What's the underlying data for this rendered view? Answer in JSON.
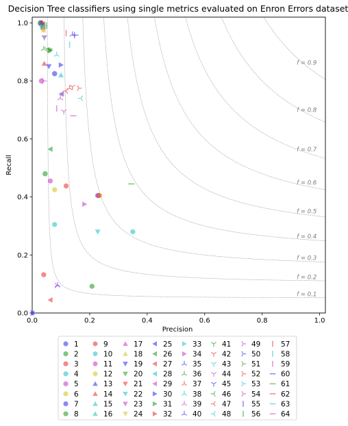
{
  "chart_data": {
    "type": "scatter",
    "title": "Decision Tree classifiers using single metrics evaluated on Enron Errors dataset",
    "xlabel": "Precision",
    "ylabel": "Recall",
    "xlim": [
      0,
      1.02
    ],
    "ylim": [
      0,
      1.02
    ],
    "xticks": [
      "0.0",
      "0.2",
      "0.4",
      "0.6",
      "0.8",
      "1.0"
    ],
    "yticks": [
      "0.0",
      "0.2",
      "0.4",
      "0.6",
      "0.8",
      "1.0"
    ],
    "grid": false,
    "legend_position": "bottom-center",
    "f_isolines": [
      {
        "f": 0.1,
        "label": "f = 0.1"
      },
      {
        "f": 0.2,
        "label": "f = 0.2"
      },
      {
        "f": 0.3,
        "label": "f = 0.3"
      },
      {
        "f": 0.4,
        "label": "f = 0.4"
      },
      {
        "f": 0.5,
        "label": "f = 0.5"
      },
      {
        "f": 0.6,
        "label": "f = 0.6"
      },
      {
        "f": 0.7,
        "label": "f = 0.7"
      },
      {
        "f": 0.8,
        "label": "f = 0.8"
      },
      {
        "f": 0.9,
        "label": "f = 0.9"
      }
    ],
    "colors": [
      "#3b3bf0",
      "#2e9c2e",
      "#ee3b3b",
      "#2ec4c4",
      "#cc44cc",
      "#d4c62e"
    ],
    "series": [
      {
        "name": "1",
        "marker": "o",
        "color": "#3b3bf0",
        "points": [
          [
            0.03,
            1.0
          ]
        ]
      },
      {
        "name": "2",
        "marker": "o",
        "color": "#2e9c2e",
        "points": [
          [
            0.028,
            1.0
          ]
        ]
      },
      {
        "name": "3",
        "marker": "o",
        "color": "#ee3b3b",
        "points": [
          [
            0.032,
            1.0
          ]
        ]
      },
      {
        "name": "4",
        "marker": "o",
        "color": "#2ec4c4",
        "points": [
          [
            0.029,
            0.997
          ]
        ]
      },
      {
        "name": "5",
        "marker": "o",
        "color": "#cc44cc",
        "points": [
          [
            0.032,
            0.8
          ]
        ]
      },
      {
        "name": "6",
        "marker": "o",
        "color": "#d4c62e",
        "points": [
          [
            0.038,
            0.98
          ]
        ]
      },
      {
        "name": "7",
        "marker": "o",
        "color": "#3b3bf0",
        "points": [
          [
            0.078,
            0.825
          ]
        ]
      },
      {
        "name": "8",
        "marker": "o",
        "color": "#2e9c2e",
        "points": [
          [
            0.045,
            0.48
          ]
        ]
      },
      {
        "name": "9",
        "marker": "h",
        "color": "#ee3b3b",
        "points": [
          [
            0.118,
            0.438
          ]
        ]
      },
      {
        "name": "10",
        "marker": "h",
        "color": "#2ec4c4",
        "points": [
          [
            0.078,
            0.305
          ]
        ]
      },
      {
        "name": "11",
        "marker": "h",
        "color": "#cc44cc",
        "points": [
          [
            0.063,
            0.455
          ]
        ]
      },
      {
        "name": "12",
        "marker": "h",
        "color": "#d4c62e",
        "points": [
          [
            0.078,
            0.425
          ]
        ]
      },
      {
        "name": "13",
        "marker": "^",
        "color": "#3b3bf0",
        "points": [
          [
            0.032,
            1.0
          ]
        ]
      },
      {
        "name": "14",
        "marker": "^",
        "color": "#ee3b3b",
        "points": [
          [
            0.042,
            0.86
          ]
        ]
      },
      {
        "name": "15",
        "marker": "^",
        "color": "#2ec4c4",
        "points": [
          [
            0.1,
            0.82
          ]
        ]
      },
      {
        "name": "16",
        "marker": "^",
        "color": "#2ec4c4",
        "points": [
          [
            0.035,
            0.99
          ]
        ]
      },
      {
        "name": "17",
        "marker": "^",
        "color": "#cc44cc",
        "points": [
          [
            0.038,
            0.985
          ]
        ]
      },
      {
        "name": "18",
        "marker": "^",
        "color": "#d4c62e",
        "points": [
          [
            0.04,
            0.975
          ]
        ]
      },
      {
        "name": "19",
        "marker": "v",
        "color": "#3b3bf0",
        "points": [
          [
            0.058,
            0.85
          ]
        ]
      },
      {
        "name": "20",
        "marker": "v",
        "color": "#2e9c2e",
        "points": [
          [
            0.062,
            0.905
          ]
        ]
      },
      {
        "name": "21",
        "marker": "v",
        "color": "#ee3b3b",
        "points": [
          [
            0.035,
            0.995
          ]
        ]
      },
      {
        "name": "22",
        "marker": "v",
        "color": "#2ec4c4",
        "points": [
          [
            0.228,
            0.28
          ]
        ]
      },
      {
        "name": "23",
        "marker": "v",
        "color": "#cc44cc",
        "points": [
          [
            0.042,
            0.95
          ]
        ]
      },
      {
        "name": "24",
        "marker": "v",
        "color": "#d4c62e",
        "points": [
          [
            0.038,
            0.99
          ]
        ]
      },
      {
        "name": "25",
        "marker": "<",
        "color": "#3b3bf0",
        "points": [
          [
            0.0,
            0.0
          ]
        ]
      },
      {
        "name": "26",
        "marker": "<",
        "color": "#2e9c2e",
        "points": [
          [
            0.063,
            0.565
          ]
        ]
      },
      {
        "name": "27",
        "marker": "<",
        "color": "#ee3b3b",
        "points": [
          [
            0.063,
            0.045
          ]
        ]
      },
      {
        "name": "28",
        "marker": "<",
        "color": "#2ec4c4",
        "points": [
          [
            0.1,
            0.755
          ]
        ]
      },
      {
        "name": "29",
        "marker": "<",
        "color": "#cc44cc",
        "points": [
          [
            0.103,
            0.755
          ]
        ]
      },
      {
        "name": "30",
        "marker": ">",
        "color": "#3b3bf0",
        "points": [
          [
            0.1,
            0.855
          ]
        ]
      },
      {
        "name": "31",
        "marker": ">",
        "color": "#2e9c2e",
        "points": [
          [
            0.062,
            0.905
          ]
        ]
      },
      {
        "name": "32",
        "marker": ">",
        "color": "#ee3b3b",
        "points": [
          [
            0.035,
            0.995
          ]
        ]
      },
      {
        "name": "33",
        "marker": ">",
        "color": "#2ec4c4",
        "points": [
          [
            0.035,
            0.99
          ]
        ]
      },
      {
        "name": "34",
        "marker": ">",
        "color": "#cc44cc",
        "points": [
          [
            0.182,
            0.375
          ]
        ]
      },
      {
        "name": "35",
        "marker": "1",
        "color": "#3b3bf0",
        "points": [
          [
            0.088,
            0.095
          ]
        ]
      },
      {
        "name": "36",
        "marker": "1",
        "color": "#2e9c2e",
        "points": [
          [
            0.04,
            0.91
          ]
        ]
      },
      {
        "name": "37",
        "marker": "1",
        "color": "#ee3b3b",
        "points": [
          [
            0.13,
            0.775
          ]
        ]
      },
      {
        "name": "38",
        "marker": "1",
        "color": "#2ec4c4",
        "points": [
          [
            0.085,
            0.89
          ]
        ]
      },
      {
        "name": "39",
        "marker": "1",
        "color": "#cc44cc",
        "points": [
          [
            0.098,
            0.74
          ]
        ]
      },
      {
        "name": "40",
        "marker": "1",
        "color": "#3b3bf0",
        "points": [
          [
            0.14,
            0.96
          ]
        ]
      },
      {
        "name": "41",
        "marker": "2",
        "color": "#2e9c2e",
        "points": [
          [
            0.052,
            0.91
          ]
        ]
      },
      {
        "name": "42",
        "marker": "2",
        "color": "#ee3b3b",
        "points": [
          [
            0.14,
            0.78
          ]
        ]
      },
      {
        "name": "43",
        "marker": "2",
        "color": "#2ec4c4",
        "points": [
          [
            0.043,
            0.95
          ]
        ]
      },
      {
        "name": "44",
        "marker": "2",
        "color": "#cc44cc",
        "points": [
          [
            0.11,
            0.695
          ]
        ]
      },
      {
        "name": "45",
        "marker": "2",
        "color": "#3b3bf0",
        "points": [
          [
            0.035,
            0.995
          ]
        ]
      },
      {
        "name": "46",
        "marker": "3",
        "color": "#2e9c2e",
        "points": [
          [
            0.04,
            0.995
          ]
        ]
      },
      {
        "name": "47",
        "marker": "3",
        "color": "#ee3b3b",
        "points": [
          [
            0.118,
            0.765
          ]
        ]
      },
      {
        "name": "48",
        "marker": "3",
        "color": "#2ec4c4",
        "points": [
          [
            0.17,
            0.74
          ]
        ]
      },
      {
        "name": "49",
        "marker": "4",
        "color": "#cc44cc",
        "points": [
          [
            0.085,
            0.095
          ]
        ]
      },
      {
        "name": "50",
        "marker": "4",
        "color": "#3b3bf0",
        "points": [
          [
            0.0,
            0.0
          ]
        ]
      },
      {
        "name": "51",
        "marker": "4",
        "color": "#2e9c2e",
        "points": [
          [
            0.06,
            0.905
          ]
        ]
      },
      {
        "name": "52",
        "marker": "4",
        "color": "#ee3b3b",
        "points": [
          [
            0.162,
            0.775
          ]
        ]
      },
      {
        "name": "53",
        "marker": "4",
        "color": "#2ec4c4",
        "points": [
          [
            0.035,
            0.985
          ]
        ]
      },
      {
        "name": "54",
        "marker": "4",
        "color": "#cc44cc",
        "points": [
          [
            0.04,
            0.8
          ]
        ]
      },
      {
        "name": "55",
        "marker": "|",
        "color": "#3b3bf0",
        "points": [
          [
            0.147,
            0.958
          ]
        ]
      },
      {
        "name": "56",
        "marker": "|",
        "color": "#2e9c2e",
        "points": [
          [
            0.05,
            0.99
          ]
        ]
      },
      {
        "name": "57",
        "marker": "|",
        "color": "#ee3b3b",
        "points": [
          [
            0.118,
            0.965
          ]
        ]
      },
      {
        "name": "58",
        "marker": "|",
        "color": "#2ec4c4",
        "points": [
          [
            0.13,
            0.925
          ]
        ]
      },
      {
        "name": "59",
        "marker": "|",
        "color": "#cc44cc",
        "points": [
          [
            0.085,
            0.705
          ]
        ]
      },
      {
        "name": "60",
        "marker": "_",
        "color": "#3b3bf0",
        "points": [
          [
            0.15,
            0.958
          ]
        ]
      },
      {
        "name": "61",
        "marker": "_",
        "color": "#2e9c2e",
        "points": [
          [
            0.345,
            0.445
          ]
        ]
      },
      {
        "name": "62",
        "marker": "_",
        "color": "#ee3b3b",
        "points": [
          [
            0.035,
            0.995
          ]
        ]
      },
      {
        "name": "63",
        "marker": "_",
        "color": "#2ec4c4",
        "points": [
          [
            0.038,
            0.99
          ]
        ]
      },
      {
        "name": "64",
        "marker": "_",
        "color": "#cc44cc",
        "points": [
          [
            0.143,
            0.68
          ]
        ]
      }
    ],
    "extra_points": [
      {
        "marker": "h",
        "color": "#2e9c2e",
        "x": 0.208,
        "y": 0.092
      },
      {
        "marker": "h",
        "color": "#ee3b3b",
        "x": 0.04,
        "y": 0.132
      },
      {
        "marker": "h",
        "color": "#2ec4c4",
        "x": 0.35,
        "y": 0.28
      },
      {
        "marker": "h",
        "color": "#3b3bf0",
        "x": 0.228,
        "y": 0.405
      },
      {
        "marker": "h",
        "color": "#d4c62e",
        "x": 0.235,
        "y": 0.405
      },
      {
        "marker": "h",
        "color": "#ee3b3b",
        "x": 0.232,
        "y": 0.405
      }
    ]
  }
}
